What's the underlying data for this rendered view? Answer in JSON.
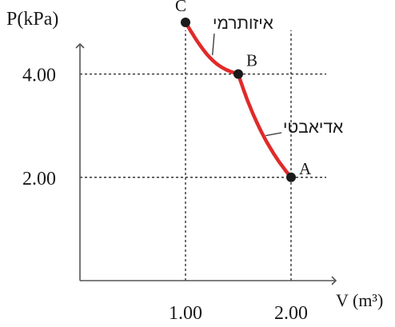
{
  "chart_data": {
    "type": "line",
    "title": "",
    "ylabel": "P(kPa)",
    "xlabel": "V (m³)",
    "xlim": [
      0,
      2.5
    ],
    "ylim": [
      0,
      5.45
    ],
    "x_ticks": [
      {
        "value": 1.0,
        "label": "1.00"
      },
      {
        "value": 2.0,
        "label": "2.00"
      }
    ],
    "y_ticks": [
      {
        "value": 2.0,
        "label": "2.00"
      },
      {
        "value": 4.0,
        "label": "4.00"
      }
    ],
    "points": [
      {
        "label": "C",
        "x": 1.0,
        "y": 5.0
      },
      {
        "label": "B",
        "x": 1.5,
        "y": 4.0
      },
      {
        "label": "A",
        "x": 2.0,
        "y": 2.0
      }
    ],
    "curves": [
      {
        "name": "איזותרמי",
        "from": "C",
        "to": "B",
        "process": "isothermal"
      },
      {
        "name": "אדיאבטי",
        "from": "B",
        "to": "A",
        "process": "adiabatic"
      }
    ],
    "colors": {
      "curve": "#e02a2a",
      "axis": "#555555",
      "grid": "#222222"
    }
  }
}
